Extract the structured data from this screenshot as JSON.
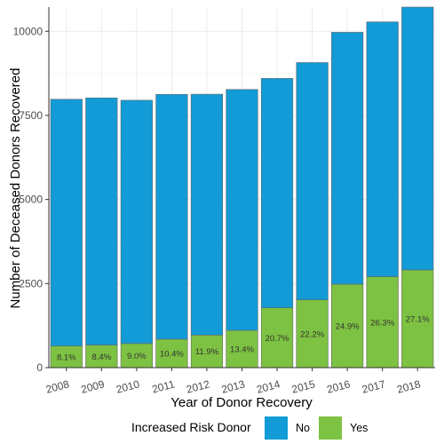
{
  "chart_data": {
    "type": "bar",
    "stacked": true,
    "title": "",
    "xlabel": "Year of Donor Recovery",
    "ylabel": "Number of Deceased Donors Recovered",
    "categories": [
      "2008",
      "2009",
      "2010",
      "2011",
      "2012",
      "2013",
      "2014",
      "2015",
      "2016",
      "2017",
      "2018"
    ],
    "series": [
      {
        "name": "Yes",
        "color": "#7dc242",
        "values": [
          645,
          672,
          716,
          845,
          968,
          1108,
          1780,
          2015,
          2482,
          2704,
          2904
        ]
      },
      {
        "name": "No",
        "color": "#129bd6",
        "values": [
          7335,
          7348,
          7234,
          7280,
          7162,
          7163,
          6820,
          7055,
          7488,
          7576,
          7816
        ]
      }
    ],
    "bar_labels": [
      "8.1%",
      "8.4%",
      "9.0%",
      "10.4%",
      "11.9%",
      "13.4%",
      "20.7%",
      "22.2%",
      "24.9%",
      "26.3%",
      "27.1%"
    ],
    "ylim": [
      0,
      10720
    ],
    "yticks": [
      0,
      2500,
      5000,
      7500,
      10000
    ],
    "ytick_labels": [
      "0",
      "2500",
      "5000",
      "7500",
      "10000"
    ],
    "grid": true,
    "legend": {
      "title": "Increased Risk Donor",
      "position": "bottom",
      "entries": [
        {
          "label": "No",
          "color": "#129bd6"
        },
        {
          "label": "Yes",
          "color": "#7dc242"
        }
      ]
    }
  }
}
